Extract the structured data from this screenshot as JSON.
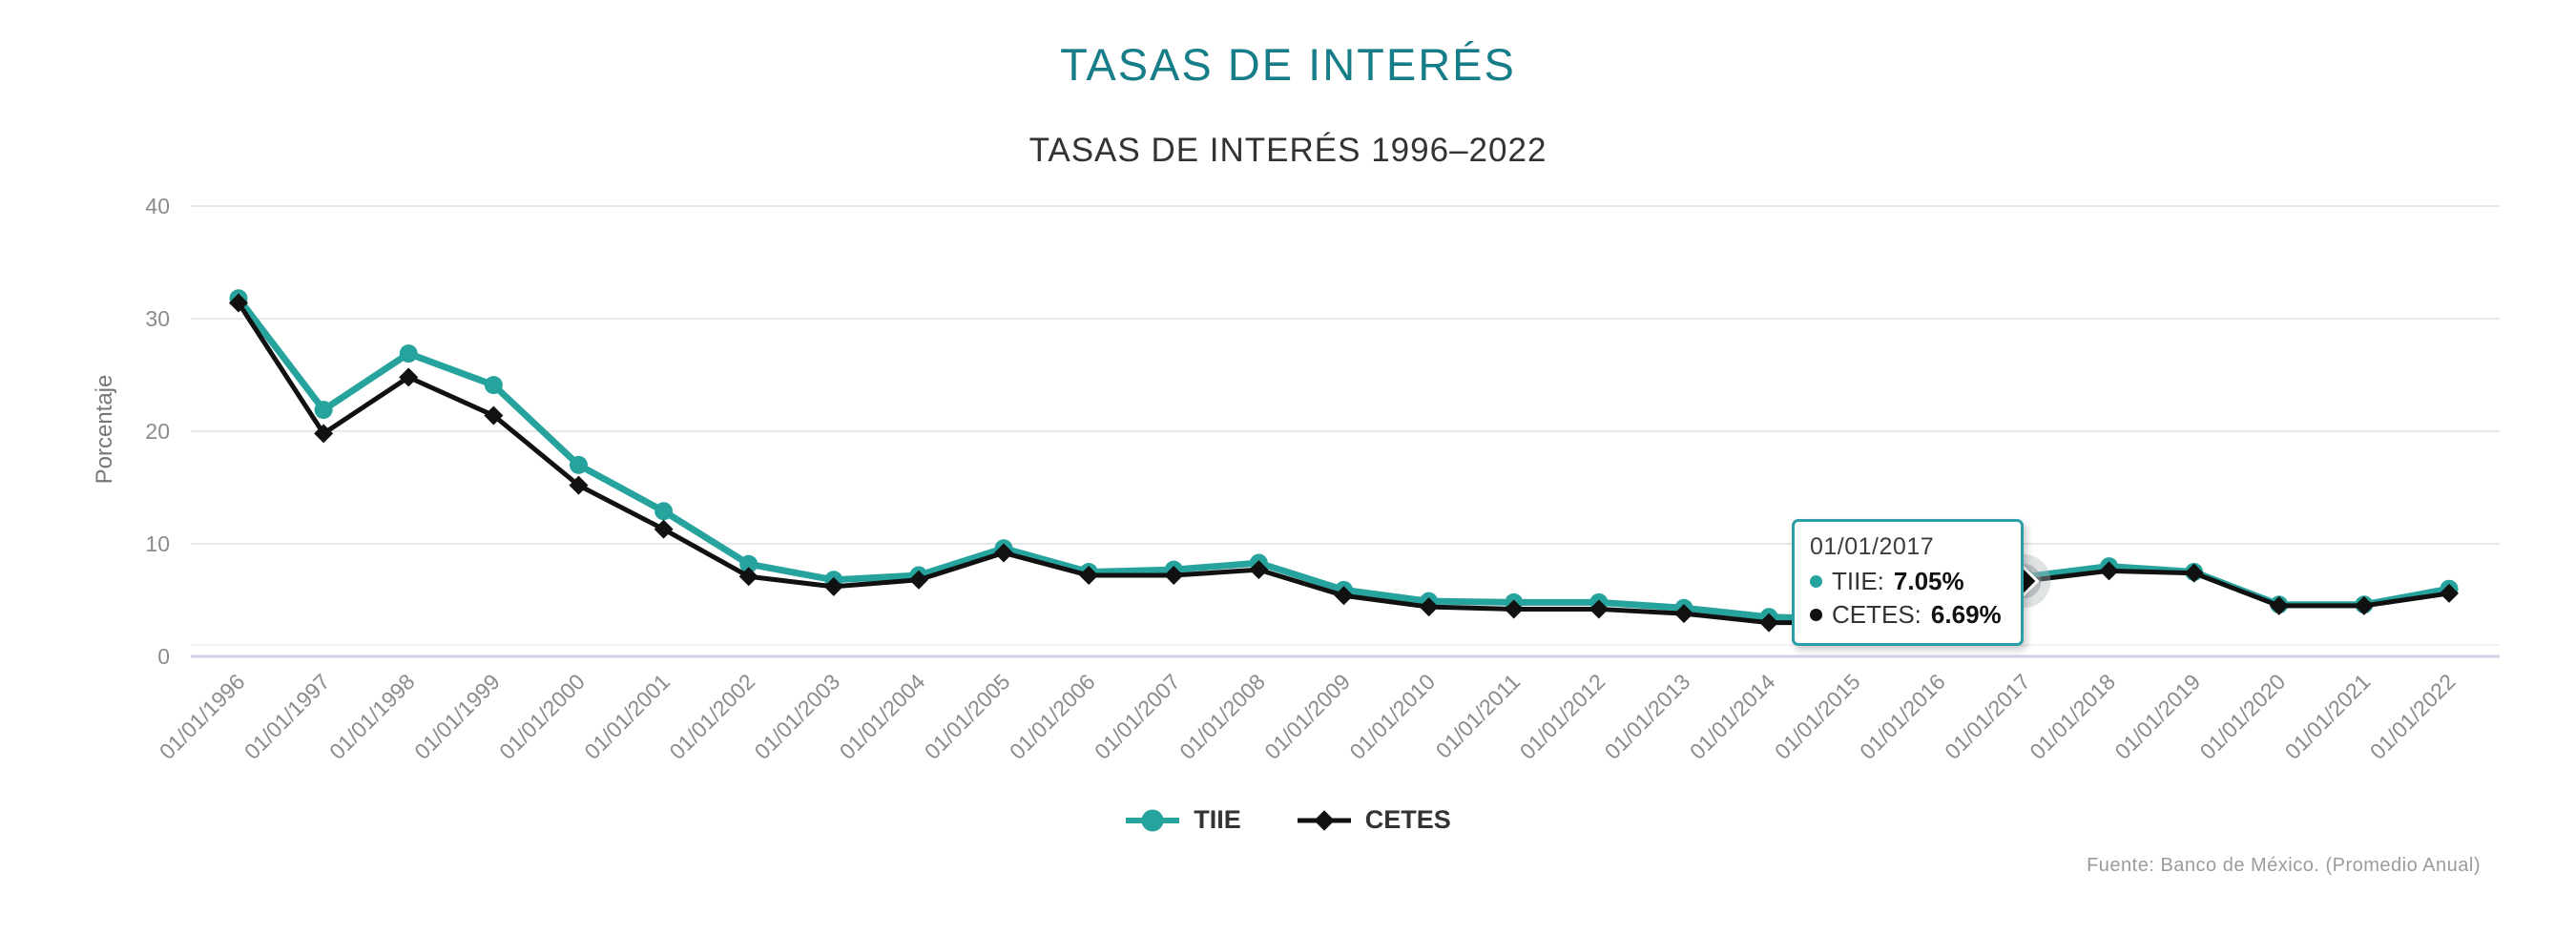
{
  "title": "TASAS DE INTERÉS",
  "subtitle": "TASAS DE INTERÉS 1996–2022",
  "footer": "Fuente: Banco de México. (Promedio Anual)",
  "colors": {
    "title": "#177e89",
    "subtitle": "#333333",
    "tiie_line": "#27a39e",
    "cetes_line": "#111111",
    "gridline": "#e8e8e8",
    "axis_line": "#ccd2e6",
    "tick_label": "#8b8b8b",
    "axis_title": "#777777",
    "tooltip_border": "#2b9fa5",
    "footer_text": "#9b9b9b"
  },
  "chart_data": {
    "type": "line",
    "title": "TASAS DE INTERÉS 1996–2022",
    "xlabel": "",
    "ylabel": "Porcentaje",
    "ylim": [
      0,
      40
    ],
    "yticks": [
      0,
      10,
      20,
      30,
      40
    ],
    "grid": true,
    "legend_position": "bottom",
    "x": [
      "01/01/1996",
      "01/01/1997",
      "01/01/1998",
      "01/01/1999",
      "01/01/2000",
      "01/01/2001",
      "01/01/2002",
      "01/01/2003",
      "01/01/2004",
      "01/01/2005",
      "01/01/2006",
      "01/01/2007",
      "01/01/2008",
      "01/01/2009",
      "01/01/2010",
      "01/01/2011",
      "01/01/2012",
      "01/01/2013",
      "01/01/2014",
      "01/01/2015",
      "01/01/2016",
      "01/01/2017",
      "01/01/2018",
      "01/01/2019",
      "01/01/2020",
      "01/01/2021",
      "01/01/2022"
    ],
    "series": [
      {
        "name": "TIIE",
        "marker": "circle",
        "color": "#27a39e",
        "values": [
          31.8,
          21.9,
          26.9,
          24.1,
          17.0,
          12.9,
          8.2,
          6.8,
          7.2,
          9.6,
          7.5,
          7.7,
          8.3,
          5.9,
          4.9,
          4.8,
          4.8,
          4.3,
          3.5,
          3.3,
          4.5,
          7.05,
          8.0,
          7.5,
          4.6,
          4.6,
          6.0
        ]
      },
      {
        "name": "CETES",
        "marker": "diamond",
        "color": "#111111",
        "values": [
          31.4,
          19.8,
          24.8,
          21.4,
          15.2,
          11.3,
          7.1,
          6.2,
          6.8,
          9.2,
          7.2,
          7.2,
          7.7,
          5.4,
          4.4,
          4.2,
          4.2,
          3.8,
          3.0,
          3.0,
          4.2,
          6.69,
          7.6,
          7.4,
          4.5,
          4.5,
          5.6
        ]
      }
    ]
  },
  "tooltip": {
    "date": "01/01/2017",
    "highlight_index": 21,
    "rows": [
      {
        "label": "TIIE:",
        "value": "7.05%"
      },
      {
        "label": "CETES:",
        "value": "6.69%"
      }
    ]
  },
  "legend": {
    "items": [
      {
        "label": "TIIE"
      },
      {
        "label": "CETES"
      }
    ]
  }
}
